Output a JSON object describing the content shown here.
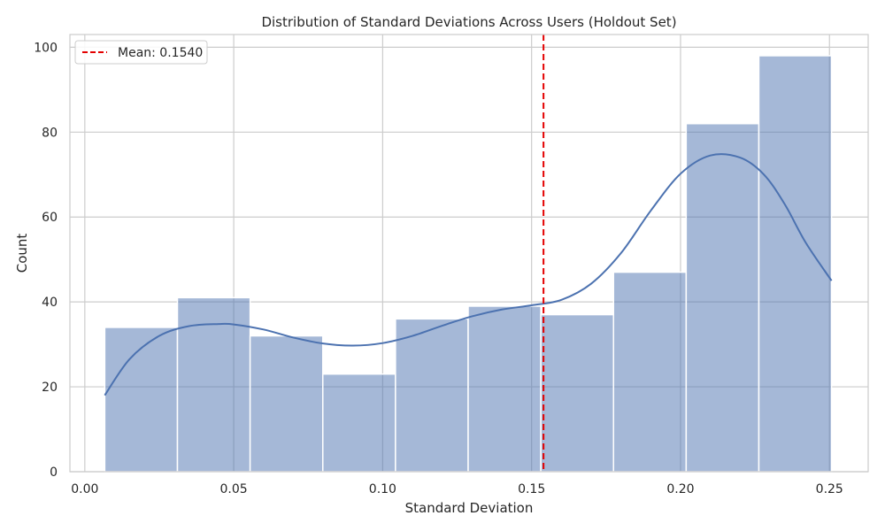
{
  "chart_data": {
    "type": "bar",
    "title": "Distribution of Standard Deviations Across Users (Holdout Set)",
    "xlabel": "Standard Deviation",
    "ylabel": "Count",
    "xlim": [
      -0.005,
      0.263
    ],
    "ylim": [
      0,
      103
    ],
    "xticks": [
      0.0,
      0.05,
      0.1,
      0.15,
      0.2,
      0.25
    ],
    "xtick_labels": [
      "0.00",
      "0.05",
      "0.10",
      "0.15",
      "0.20",
      "0.25"
    ],
    "yticks": [
      0,
      20,
      40,
      60,
      80,
      100
    ],
    "ytick_labels": [
      "0",
      "20",
      "40",
      "60",
      "80",
      "100"
    ],
    "grid": true,
    "histogram": {
      "bin_edges": [
        0.0067,
        0.0311,
        0.0555,
        0.0799,
        0.1043,
        0.1287,
        0.1531,
        0.1775,
        0.2019,
        0.2263,
        0.2507
      ],
      "counts": [
        34,
        41,
        32,
        23,
        36,
        39,
        37,
        47,
        82,
        98
      ],
      "color": "#4c72b0",
      "opacity": 0.5
    },
    "kde": {
      "x": [
        0.0067,
        0.015,
        0.025,
        0.035,
        0.045,
        0.05,
        0.06,
        0.07,
        0.08,
        0.09,
        0.1,
        0.11,
        0.12,
        0.13,
        0.14,
        0.15,
        0.16,
        0.17,
        0.18,
        0.19,
        0.2,
        0.21,
        0.22,
        0.228,
        0.235,
        0.242,
        0.2507
      ],
      "y": [
        18,
        26.5,
        32,
        34.3,
        34.8,
        34.7,
        33.5,
        31.6,
        30.2,
        29.7,
        30.3,
        32,
        34.4,
        36.6,
        38.2,
        39.2,
        40.5,
        44.3,
        51.5,
        61.5,
        70.2,
        74.5,
        74,
        70,
        63,
        54,
        45
      ],
      "color": "#4c72b0"
    },
    "reference_line": {
      "x": 0.154,
      "color": "#e30000",
      "style": "dashed"
    },
    "legend": {
      "placement": "top-left",
      "entries": [
        "Mean: 0.1540"
      ]
    }
  }
}
